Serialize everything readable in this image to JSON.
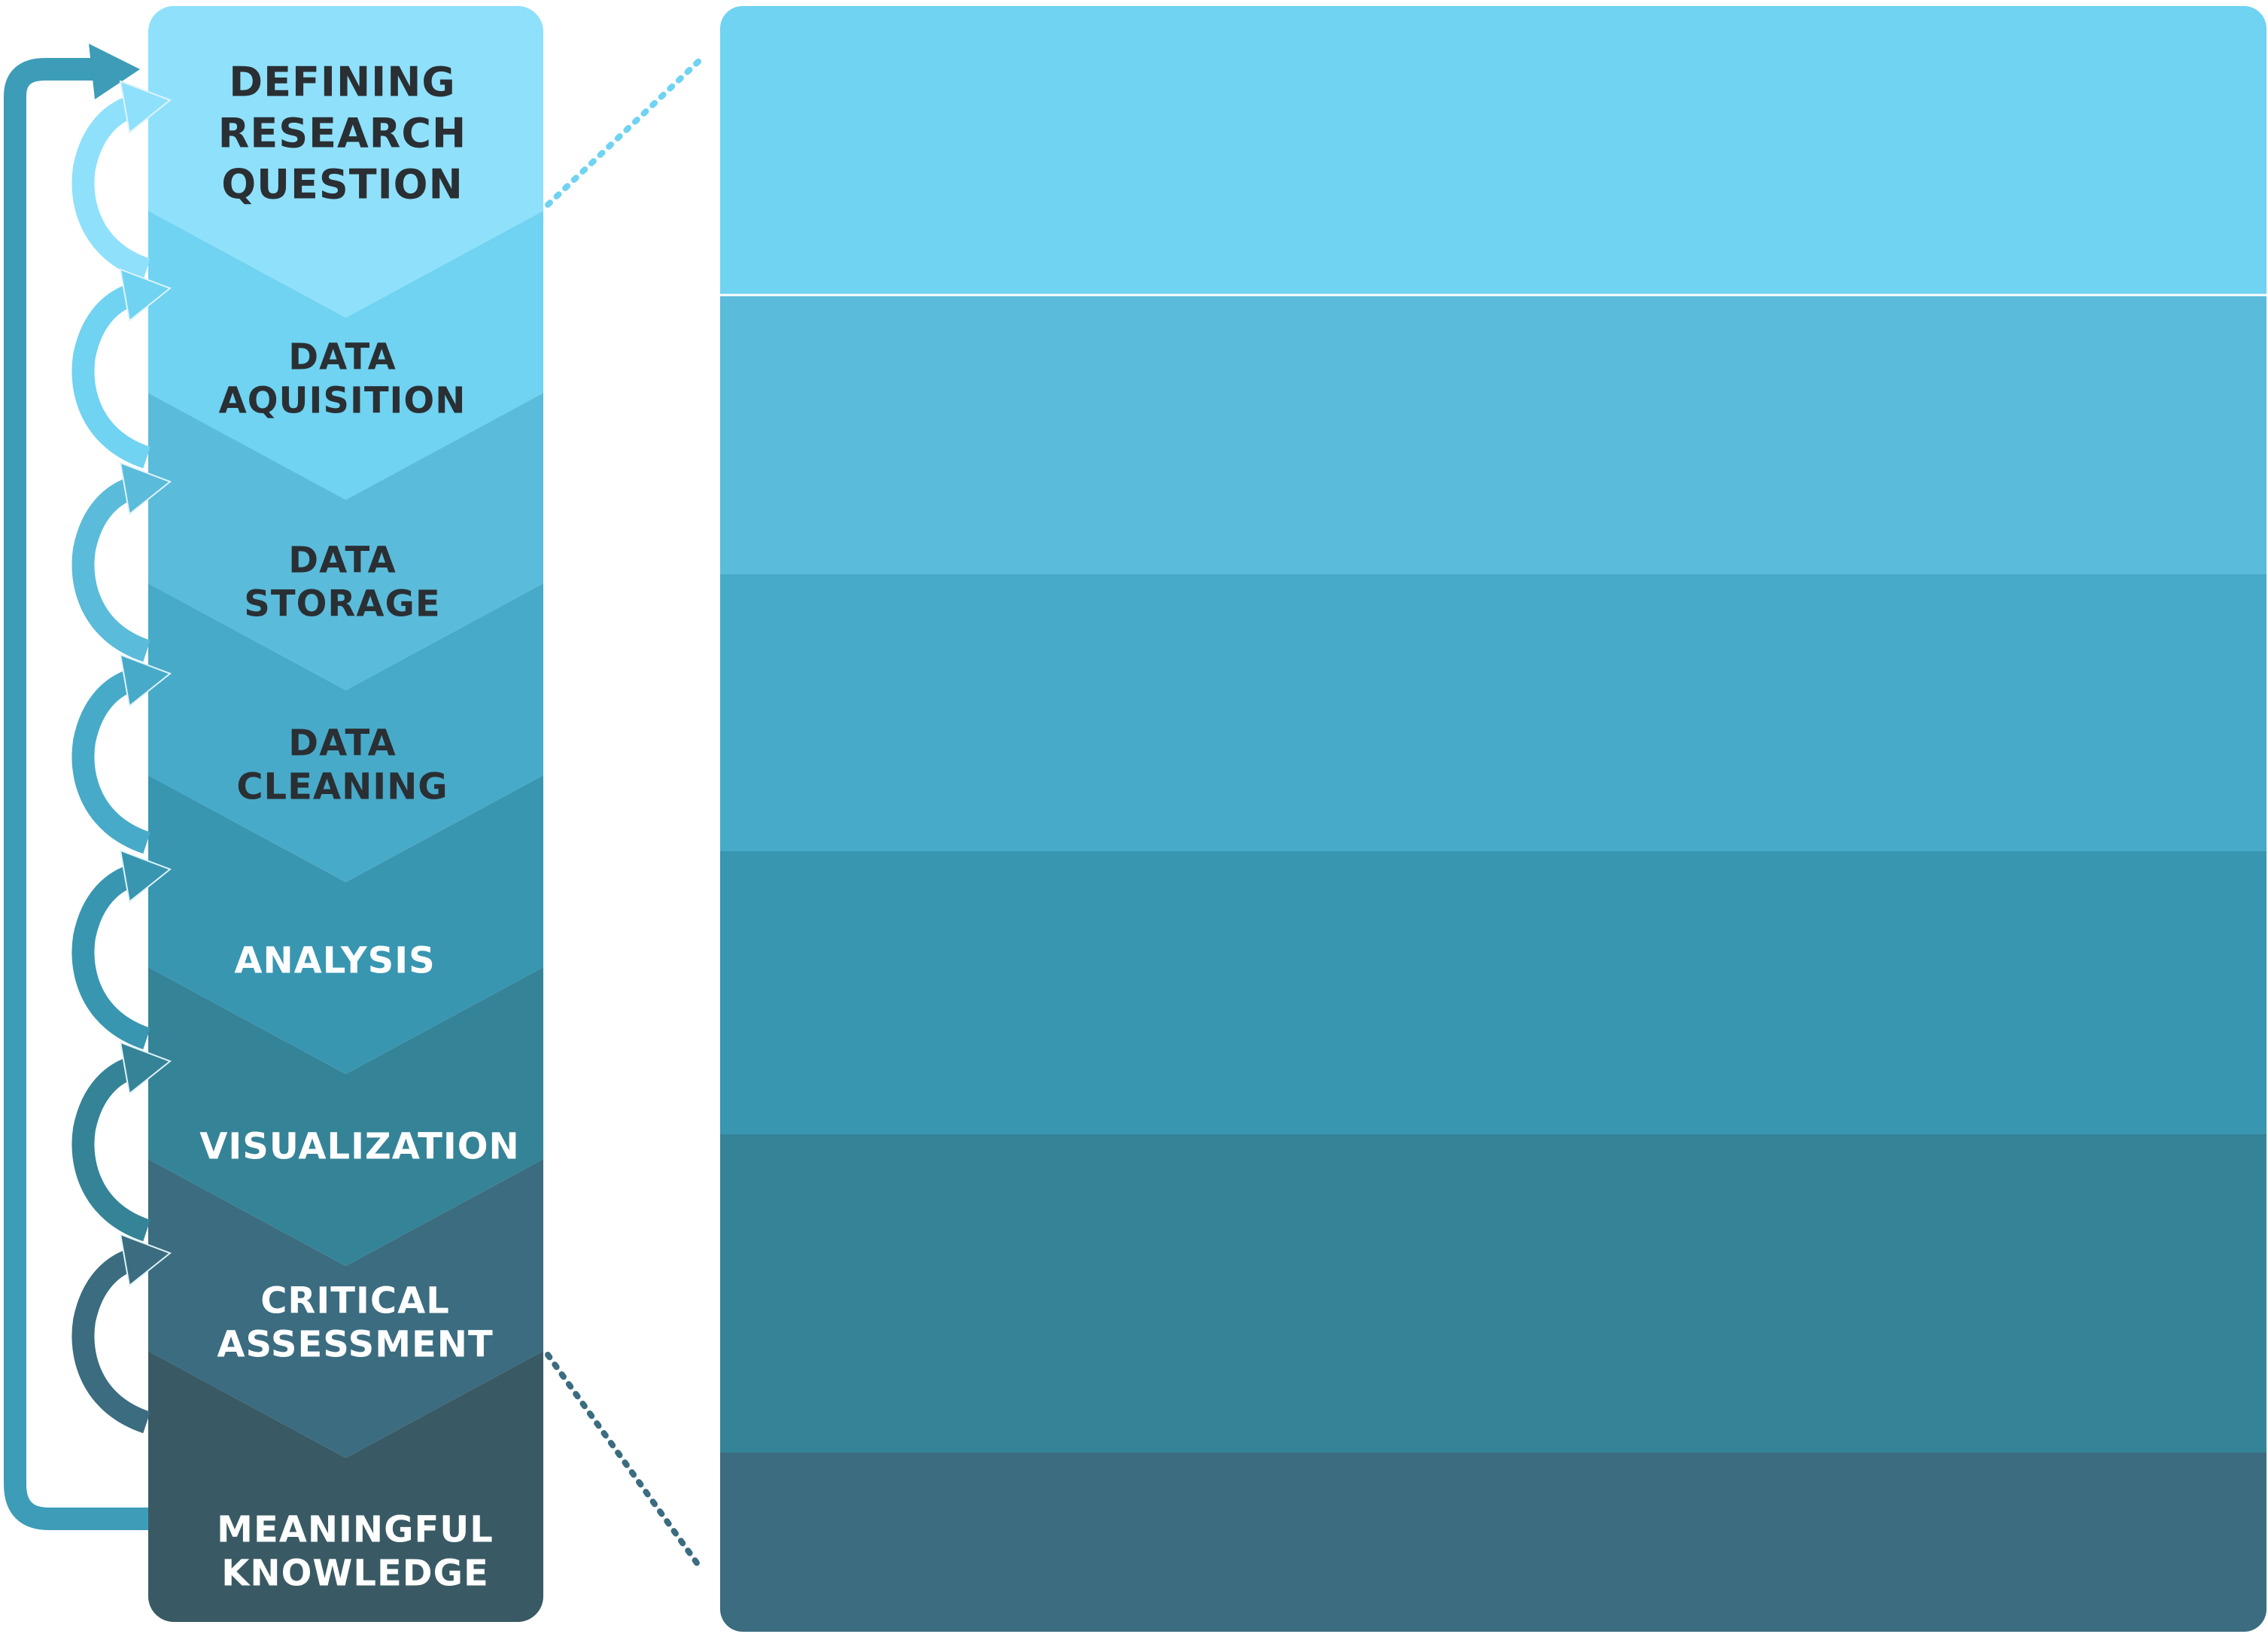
{
  "steps": [
    {
      "id": "defining-research-question",
      "lines": [
        "DEFINING",
        "RESEARCH",
        "QUESTION"
      ],
      "color": "#8fe0fb",
      "text_color": "#2a2f33"
    },
    {
      "id": "data-aquisition",
      "lines": [
        "DATA",
        "AQUISITION"
      ],
      "color": "#6fd3f1",
      "text_color": "#2a2f33"
    },
    {
      "id": "data-storage",
      "lines": [
        "DATA",
        "STORAGE"
      ],
      "color": "#5bbbda",
      "text_color": "#2a2f33"
    },
    {
      "id": "data-cleaning",
      "lines": [
        "DATA",
        "CLEANING"
      ],
      "color": "#48aac9",
      "text_color": "#2a2f33"
    },
    {
      "id": "analysis",
      "lines": [
        "ANALYSIS"
      ],
      "color": "#3896b1",
      "text_color": "#ffffff"
    },
    {
      "id": "visualization",
      "lines": [
        "VISUALIZATION"
      ],
      "color": "#358397",
      "text_color": "#ffffff"
    },
    {
      "id": "critical-assessment",
      "lines": [
        "CRITICAL",
        "ASSESSMENT"
      ],
      "color": "#3b6c80",
      "text_color": "#ffffff"
    },
    {
      "id": "meaningful-knowledge",
      "lines": [
        "MEANINGFUL",
        "KNOWLEDGE"
      ],
      "color": "#395a64",
      "text_color": "#ffffff"
    }
  ],
  "right_panel_colors": [
    "#6fd3f1",
    "#5bbbda",
    "#48aac9",
    "#3896b1",
    "#358397",
    "#3b6c80"
  ],
  "loop_arrow_color": "#3d9cb7",
  "connector_colors": [
    "#6fd3f1",
    "#3b6c80"
  ]
}
